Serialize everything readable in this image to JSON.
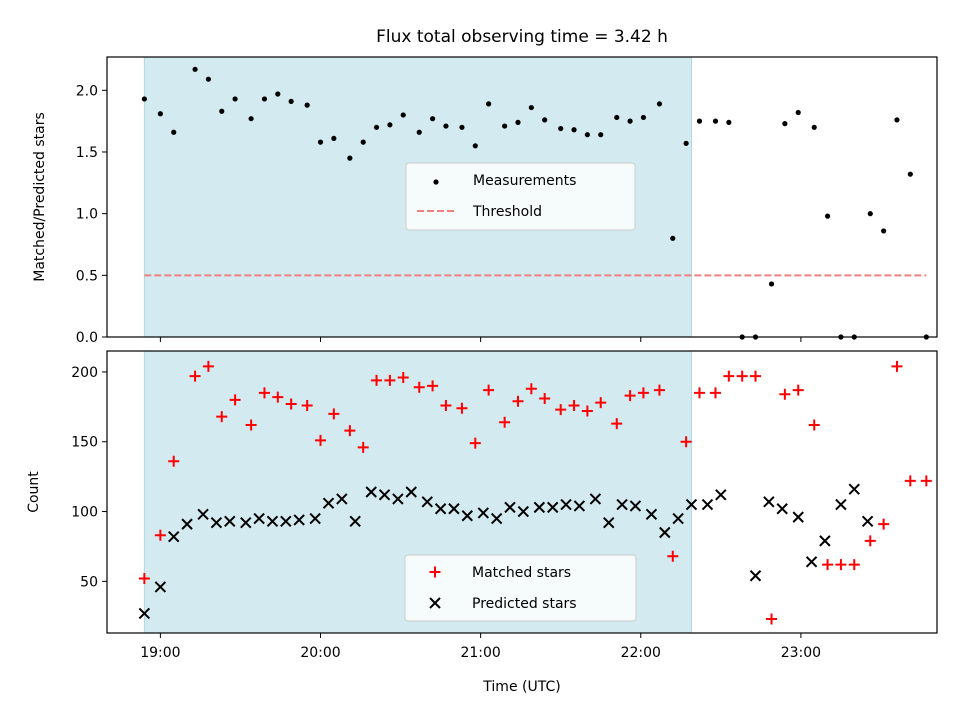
{
  "title": "Flux total observing time = 3.42 h",
  "chart_data": [
    {
      "type": "scatter",
      "ylabel": "Matched/Predicted stars",
      "xlabel": "",
      "ylim": [
        0,
        2.27
      ],
      "y_ticks": [
        0.0,
        0.5,
        1.0,
        1.5,
        2.0
      ],
      "y_tick_labels": [
        "0.0",
        "0.5",
        "1.0",
        "1.5",
        "2.0"
      ],
      "x_ticks": [
        "19:00",
        "20:00",
        "21:00",
        "22:00",
        "23:00"
      ],
      "shaded_span": {
        "start": "18:54",
        "end": "22:19",
        "color": "#d3eaf0"
      },
      "legend_position": "center",
      "series": [
        {
          "name": "Measurements",
          "kind": "scatter-dot",
          "color": "#000000",
          "points": [
            [
              "18:54",
              1.93
            ],
            [
              "19:00",
              1.81
            ],
            [
              "19:05",
              1.66
            ],
            [
              "19:13",
              2.17
            ],
            [
              "19:18",
              2.09
            ],
            [
              "19:23",
              1.83
            ],
            [
              "19:28",
              1.93
            ],
            [
              "19:34",
              1.77
            ],
            [
              "19:39",
              1.93
            ],
            [
              "19:44",
              1.97
            ],
            [
              "19:49",
              1.91
            ],
            [
              "19:55",
              1.88
            ],
            [
              "20:00",
              1.58
            ],
            [
              "20:05",
              1.61
            ],
            [
              "20:11",
              1.45
            ],
            [
              "20:16",
              1.58
            ],
            [
              "20:21",
              1.7
            ],
            [
              "20:26",
              1.72
            ],
            [
              "20:31",
              1.8
            ],
            [
              "20:37",
              1.66
            ],
            [
              "20:42",
              1.77
            ],
            [
              "20:47",
              1.71
            ],
            [
              "20:53",
              1.7
            ],
            [
              "20:58",
              1.55
            ],
            [
              "21:03",
              1.89
            ],
            [
              "21:09",
              1.71
            ],
            [
              "21:14",
              1.74
            ],
            [
              "21:19",
              1.86
            ],
            [
              "21:24",
              1.76
            ],
            [
              "21:30",
              1.69
            ],
            [
              "21:35",
              1.68
            ],
            [
              "21:40",
              1.64
            ],
            [
              "21:45",
              1.64
            ],
            [
              "21:51",
              1.78
            ],
            [
              "21:56",
              1.75
            ],
            [
              "22:01",
              1.78
            ],
            [
              "22:07",
              1.89
            ],
            [
              "22:12",
              0.8
            ],
            [
              "22:17",
              1.57
            ],
            [
              "22:22",
              1.75
            ],
            [
              "22:28",
              1.75
            ],
            [
              "22:33",
              1.74
            ],
            [
              "22:38",
              0.0
            ],
            [
              "22:43",
              0.0
            ],
            [
              "22:49",
              0.43
            ],
            [
              "22:54",
              1.73
            ],
            [
              "22:59",
              1.82
            ],
            [
              "23:05",
              1.7
            ],
            [
              "23:10",
              0.98
            ],
            [
              "23:15",
              0.0
            ],
            [
              "23:20",
              0.0
            ],
            [
              "23:26",
              1.0
            ],
            [
              "23:31",
              0.86
            ],
            [
              "23:36",
              1.76
            ],
            [
              "23:41",
              1.32
            ],
            [
              "23:47",
              0.0
            ]
          ]
        },
        {
          "name": "Threshold",
          "kind": "dashed-line",
          "color": "#f08080",
          "y": 0.5,
          "x_range": [
            "18:54",
            "23:47"
          ]
        }
      ]
    },
    {
      "type": "scatter",
      "ylabel": "Count",
      "xlabel": "Time (UTC)",
      "ylim": [
        13,
        215
      ],
      "y_ticks": [
        50,
        100,
        150,
        200
      ],
      "y_tick_labels": [
        "50",
        "100",
        "150",
        "200"
      ],
      "x_ticks": [
        "19:00",
        "20:00",
        "21:00",
        "22:00",
        "23:00"
      ],
      "shaded_span": {
        "start": "18:54",
        "end": "22:19",
        "color": "#d3eaf0"
      },
      "legend_position": "lower center",
      "series": [
        {
          "name": "Matched stars",
          "marker": "plus",
          "color": "#ff0000",
          "points": [
            [
              "18:54",
              52
            ],
            [
              "19:00",
              83
            ],
            [
              "19:05",
              136
            ],
            [
              "19:13",
              197
            ],
            [
              "19:18",
              204
            ],
            [
              "19:23",
              168
            ],
            [
              "19:28",
              180
            ],
            [
              "19:34",
              162
            ],
            [
              "19:39",
              185
            ],
            [
              "19:44",
              182
            ],
            [
              "19:49",
              177
            ],
            [
              "19:55",
              176
            ],
            [
              "20:00",
              151
            ],
            [
              "20:05",
              170
            ],
            [
              "20:11",
              158
            ],
            [
              "20:16",
              146
            ],
            [
              "20:21",
              194
            ],
            [
              "20:26",
              194
            ],
            [
              "20:31",
              196
            ],
            [
              "20:37",
              189
            ],
            [
              "20:42",
              190
            ],
            [
              "20:47",
              176
            ],
            [
              "20:53",
              174
            ],
            [
              "20:58",
              149
            ],
            [
              "21:03",
              187
            ],
            [
              "21:09",
              164
            ],
            [
              "21:14",
              179
            ],
            [
              "21:19",
              188
            ],
            [
              "21:24",
              181
            ],
            [
              "21:30",
              173
            ],
            [
              "21:35",
              176
            ],
            [
              "21:40",
              172
            ],
            [
              "21:45",
              178
            ],
            [
              "21:51",
              163
            ],
            [
              "21:56",
              183
            ],
            [
              "22:01",
              185
            ],
            [
              "22:07",
              187
            ],
            [
              "22:12",
              68
            ],
            [
              "22:17",
              150
            ],
            [
              "22:22",
              185
            ],
            [
              "22:28",
              185
            ],
            [
              "22:33",
              197
            ],
            [
              "22:38",
              197
            ],
            [
              "22:43",
              197
            ],
            [
              "22:49",
              23
            ],
            [
              "22:54",
              184
            ],
            [
              "22:59",
              187
            ],
            [
              "23:05",
              162
            ],
            [
              "23:10",
              62
            ],
            [
              "23:15",
              62
            ],
            [
              "23:20",
              62
            ],
            [
              "23:26",
              79
            ],
            [
              "23:31",
              91
            ],
            [
              "23:36",
              204
            ],
            [
              "23:41",
              122
            ],
            [
              "23:47",
              122
            ]
          ]
        },
        {
          "name": "Predicted stars",
          "marker": "x",
          "color": "#000000",
          "points": [
            [
              "18:54",
              27
            ],
            [
              "19:00",
              46
            ],
            [
              "19:05",
              82
            ],
            [
              "19:10",
              91
            ],
            [
              "19:16",
              98
            ],
            [
              "19:21",
              92
            ],
            [
              "19:26",
              93
            ],
            [
              "19:32",
              92
            ],
            [
              "19:37",
              95
            ],
            [
              "19:42",
              93
            ],
            [
              "19:47",
              93
            ],
            [
              "19:52",
              94
            ],
            [
              "19:58",
              95
            ],
            [
              "20:03",
              106
            ],
            [
              "20:08",
              109
            ],
            [
              "20:13",
              93
            ],
            [
              "20:19",
              114
            ],
            [
              "20:24",
              112
            ],
            [
              "20:29",
              109
            ],
            [
              "20:34",
              114
            ],
            [
              "20:40",
              107
            ],
            [
              "20:45",
              102
            ],
            [
              "20:50",
              102
            ],
            [
              "20:55",
              97
            ],
            [
              "21:01",
              99
            ],
            [
              "21:06",
              95
            ],
            [
              "21:11",
              103
            ],
            [
              "21:16",
              100
            ],
            [
              "21:22",
              103
            ],
            [
              "21:27",
              103
            ],
            [
              "21:32",
              105
            ],
            [
              "21:37",
              104
            ],
            [
              "21:43",
              109
            ],
            [
              "21:48",
              92
            ],
            [
              "21:53",
              105
            ],
            [
              "21:58",
              104
            ],
            [
              "22:04",
              98
            ],
            [
              "22:09",
              85
            ],
            [
              "22:14",
              95
            ],
            [
              "22:19",
              105
            ],
            [
              "22:25",
              105
            ],
            [
              "22:30",
              112
            ],
            [
              "22:43",
              54
            ],
            [
              "22:48",
              107
            ],
            [
              "22:53",
              102
            ],
            [
              "22:59",
              96
            ],
            [
              "23:04",
              64
            ],
            [
              "23:09",
              79
            ],
            [
              "23:15",
              105
            ],
            [
              "23:20",
              116
            ],
            [
              "23:25",
              93
            ]
          ]
        }
      ]
    }
  ]
}
